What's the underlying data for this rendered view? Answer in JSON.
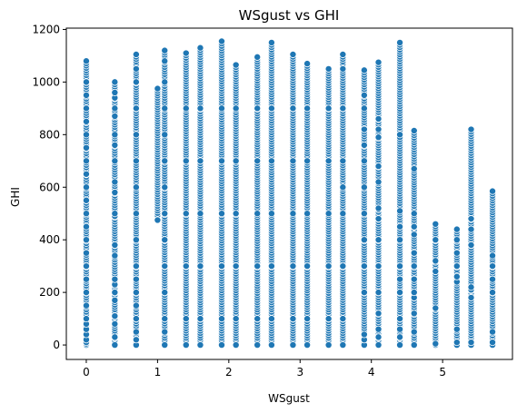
{
  "chart_data": {
    "type": "scatter",
    "title": "WSgust vs GHI",
    "xlabel": "WSgust",
    "ylabel": "GHI",
    "xlim": [
      -0.28,
      5.98
    ],
    "ylim": [
      -55,
      1205
    ],
    "x_ticks": [
      0,
      1,
      2,
      3,
      4,
      5
    ],
    "y_ticks": [
      0,
      200,
      400,
      600,
      800,
      1000,
      1200
    ],
    "grid": false,
    "legend": "none",
    "marker_color": "#1f77b4",
    "columns": [
      {
        "x": 0.0,
        "min": 0,
        "max": 1080,
        "extra": [
          0,
          5,
          10,
          20,
          40,
          60,
          80,
          100,
          150,
          200,
          250,
          300,
          350,
          400,
          450,
          500,
          550,
          600,
          650,
          700,
          750,
          800,
          850,
          900,
          950,
          1000,
          1080
        ]
      },
      {
        "x": 0.4,
        "min": 0,
        "max": 1000,
        "extra": [
          0,
          30,
          80,
          110,
          170,
          200,
          230,
          250,
          340,
          380,
          490,
          500,
          580,
          620,
          700,
          760,
          800,
          870,
          900,
          940,
          960,
          1000
        ]
      },
      {
        "x": 0.7,
        "min": 0,
        "max": 1105,
        "extra": [
          0,
          20,
          50,
          100,
          150,
          200,
          250,
          300,
          400,
          500,
          600,
          700,
          800,
          900,
          1000,
          1050,
          1105
        ]
      },
      {
        "x": 1.0,
        "min": 475,
        "max": 975,
        "extra": [
          475,
          975
        ]
      },
      {
        "x": 1.1,
        "min": 0,
        "max": 1120,
        "extra": [
          0,
          50,
          100,
          200,
          300,
          400,
          500,
          600,
          700,
          800,
          900,
          1000,
          1080,
          1120
        ]
      },
      {
        "x": 1.4,
        "min": 0,
        "max": 1110,
        "extra": [
          0,
          100,
          300,
          500,
          700,
          900,
          1110
        ]
      },
      {
        "x": 1.6,
        "min": 0,
        "max": 1130,
        "extra": [
          0,
          100,
          300,
          500,
          700,
          900,
          1130
        ]
      },
      {
        "x": 1.9,
        "min": 0,
        "max": 1155,
        "extra": [
          0,
          100,
          300,
          500,
          700,
          900,
          1155
        ]
      },
      {
        "x": 2.1,
        "min": 0,
        "max": 1065,
        "extra": [
          0,
          100,
          300,
          500,
          700,
          900,
          1065
        ]
      },
      {
        "x": 2.4,
        "min": 0,
        "max": 1095,
        "extra": [
          0,
          100,
          300,
          500,
          700,
          900,
          1095
        ]
      },
      {
        "x": 2.6,
        "min": 0,
        "max": 1150,
        "extra": [
          0,
          100,
          300,
          500,
          700,
          900,
          1150
        ]
      },
      {
        "x": 2.9,
        "min": 0,
        "max": 1105,
        "extra": [
          0,
          100,
          300,
          500,
          700,
          900,
          1105
        ]
      },
      {
        "x": 3.1,
        "min": 0,
        "max": 1070,
        "extra": [
          0,
          100,
          300,
          500,
          700,
          900,
          1070
        ]
      },
      {
        "x": 3.4,
        "min": 0,
        "max": 1050,
        "extra": [
          0,
          100,
          300,
          500,
          700,
          900,
          1050
        ]
      },
      {
        "x": 3.6,
        "min": 0,
        "max": 1105,
        "extra": [
          0,
          100,
          300,
          500,
          600,
          700,
          900,
          1050,
          1105
        ]
      },
      {
        "x": 3.9,
        "min": 0,
        "max": 1045,
        "extra": [
          0,
          20,
          40,
          200,
          300,
          400,
          500,
          600,
          700,
          760,
          820,
          900,
          950,
          1045
        ]
      },
      {
        "x": 4.1,
        "min": 0,
        "max": 1075,
        "extra": [
          0,
          30,
          60,
          120,
          200,
          300,
          400,
          480,
          520,
          620,
          680,
          790,
          820,
          860,
          1075
        ]
      },
      {
        "x": 4.4,
        "min": 0,
        "max": 1150,
        "extra": [
          0,
          30,
          60,
          100,
          200,
          250,
          300,
          400,
          450,
          510,
          790,
          800,
          1150
        ]
      },
      {
        "x": 4.6,
        "min": 0,
        "max": 815,
        "extra": [
          0,
          50,
          120,
          180,
          200,
          250,
          300,
          350,
          420,
          450,
          500,
          670,
          815
        ]
      },
      {
        "x": 4.9,
        "min": 0,
        "max": 460,
        "extra": [
          0,
          5,
          140,
          280,
          320,
          400,
          460
        ]
      },
      {
        "x": 5.2,
        "min": 0,
        "max": 440,
        "extra": [
          0,
          10,
          60,
          240,
          260,
          300,
          350,
          400,
          440
        ]
      },
      {
        "x": 5.4,
        "min": 0,
        "max": 820,
        "extra": [
          0,
          10,
          180,
          210,
          220,
          380,
          440,
          480,
          820
        ]
      },
      {
        "x": 5.7,
        "min": 0,
        "max": 585,
        "extra": [
          0,
          10,
          50,
          200,
          250,
          300,
          340,
          585
        ]
      }
    ]
  }
}
